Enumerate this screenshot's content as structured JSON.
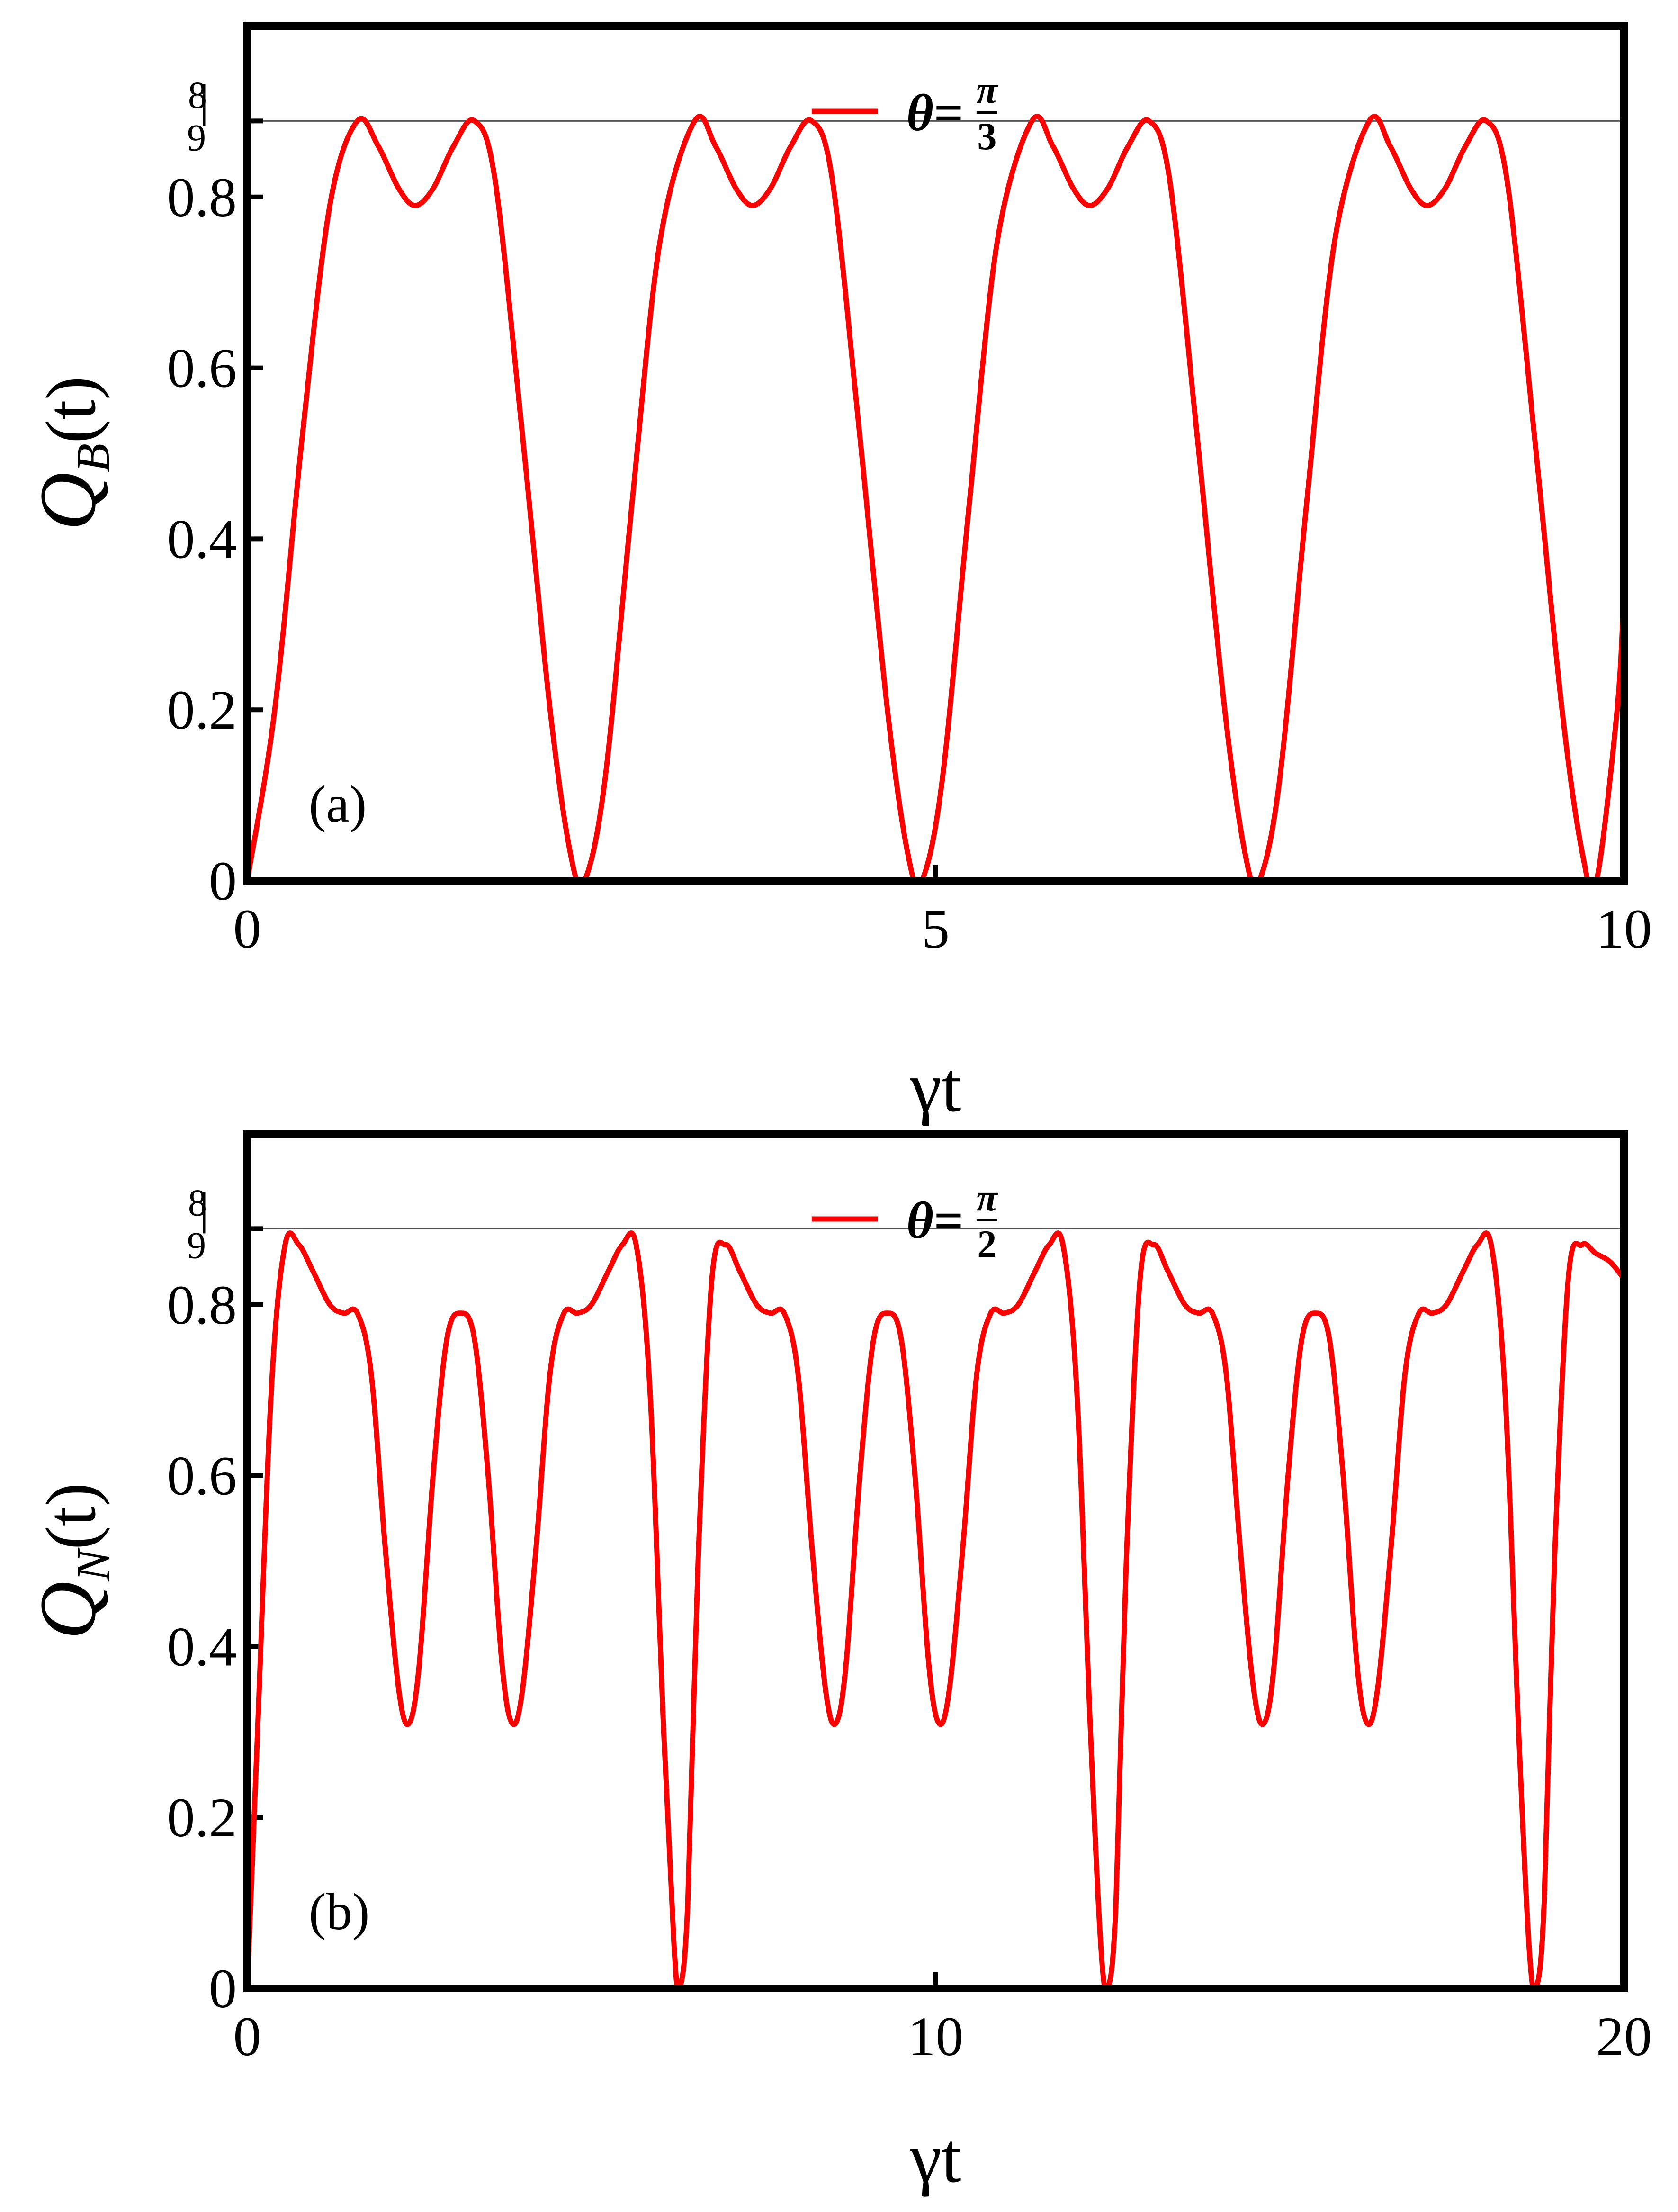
{
  "chart_data": [
    {
      "type": "line",
      "panel_label": "(a)",
      "xlabel": "γt",
      "ylabel": "Q_B(t)",
      "ylabel_main": "Q",
      "ylabel_sub": "B",
      "ylabel_tail": "(t)",
      "xlim": [
        0,
        10
      ],
      "ylim": [
        0,
        1
      ],
      "xticks": [
        0,
        5,
        10
      ],
      "xtick_labels": [
        "0",
        "5",
        "10"
      ],
      "yticks": [
        0,
        0.2,
        0.4,
        0.6,
        0.8
      ],
      "ytick_labels": [
        "0",
        "0.2",
        "0.4",
        "0.6",
        "0.8"
      ],
      "reference_line": {
        "value": 0.8889,
        "label_num": "8",
        "label_den": "9"
      },
      "legend": {
        "position": "top-center",
        "symbol": "θ=",
        "num": "π",
        "den": "3"
      },
      "series": [
        {
          "color": "#ff0000",
          "points": [
            [
              0,
              0
            ],
            [
              0.2,
              0.2
            ],
            [
              0.4,
              0.52
            ],
            [
              0.6,
              0.79
            ],
            [
              0.8,
              0.889
            ],
            [
              0.95,
              0.86
            ],
            [
              1.1,
              0.81
            ],
            [
              1.22,
              0.79
            ],
            [
              1.35,
              0.81
            ],
            [
              1.5,
              0.86
            ],
            [
              1.65,
              0.889
            ],
            [
              1.8,
              0.82
            ],
            [
              2.0,
              0.52
            ],
            [
              2.2,
              0.2
            ],
            [
              2.35,
              0.03
            ],
            [
              2.45,
              0
            ],
            [
              2.6,
              0.12
            ],
            [
              2.8,
              0.45
            ],
            [
              3.0,
              0.75
            ],
            [
              3.25,
              0.889
            ],
            [
              3.4,
              0.86
            ],
            [
              3.55,
              0.81
            ],
            [
              3.67,
              0.79
            ],
            [
              3.8,
              0.81
            ],
            [
              3.95,
              0.86
            ],
            [
              4.1,
              0.889
            ],
            [
              4.25,
              0.82
            ],
            [
              4.45,
              0.52
            ],
            [
              4.65,
              0.2
            ],
            [
              4.8,
              0.03
            ],
            [
              4.9,
              0
            ],
            [
              5.05,
              0.12
            ],
            [
              5.25,
              0.45
            ],
            [
              5.45,
              0.75
            ],
            [
              5.7,
              0.889
            ],
            [
              5.85,
              0.86
            ],
            [
              6.0,
              0.81
            ],
            [
              6.12,
              0.79
            ],
            [
              6.25,
              0.81
            ],
            [
              6.4,
              0.86
            ],
            [
              6.55,
              0.889
            ],
            [
              6.7,
              0.82
            ],
            [
              6.9,
              0.52
            ],
            [
              7.1,
              0.2
            ],
            [
              7.25,
              0.03
            ],
            [
              7.35,
              0
            ],
            [
              7.5,
              0.12
            ],
            [
              7.7,
              0.45
            ],
            [
              7.9,
              0.75
            ],
            [
              8.15,
              0.889
            ],
            [
              8.3,
              0.86
            ],
            [
              8.45,
              0.81
            ],
            [
              8.57,
              0.79
            ],
            [
              8.7,
              0.81
            ],
            [
              8.85,
              0.86
            ],
            [
              9.0,
              0.889
            ],
            [
              9.15,
              0.82
            ],
            [
              9.35,
              0.52
            ],
            [
              9.55,
              0.2
            ],
            [
              9.7,
              0.03
            ],
            [
              9.8,
              0
            ],
            [
              9.95,
              0.2
            ],
            [
              10,
              0.34
            ]
          ]
        }
      ]
    },
    {
      "type": "line",
      "panel_label": "(b)",
      "xlabel": "γt",
      "ylabel": "Q_N(t)",
      "ylabel_main": "Q",
      "ylabel_sub": "N",
      "ylabel_tail": "(t)",
      "xlim": [
        0,
        20
      ],
      "ylim": [
        0,
        1
      ],
      "xticks": [
        0,
        10,
        20
      ],
      "xtick_labels": [
        "0",
        "10",
        "20"
      ],
      "yticks": [
        0,
        0.2,
        0.4,
        0.6,
        0.8
      ],
      "ytick_labels": [
        "0",
        "0.2",
        "0.4",
        "0.6",
        "0.8"
      ],
      "reference_line": {
        "value": 0.8889,
        "label_num": "8",
        "label_den": "9"
      },
      "legend": {
        "position": "top-center",
        "symbol": "θ=",
        "num": "π",
        "den": "2"
      },
      "series": [
        {
          "color": "#ff0000",
          "points": [
            [
              0,
              0
            ],
            [
              0.15,
              0.3
            ],
            [
              0.35,
              0.7
            ],
            [
              0.55,
              0.87
            ],
            [
              0.75,
              0.87
            ],
            [
              0.95,
              0.84
            ],
            [
              1.2,
              0.8
            ],
            [
              1.4,
              0.79
            ],
            [
              1.6,
              0.79
            ],
            [
              1.8,
              0.72
            ],
            [
              2.0,
              0.52
            ],
            [
              2.2,
              0.35
            ],
            [
              2.35,
              0.31
            ],
            [
              2.5,
              0.38
            ],
            [
              2.7,
              0.6
            ],
            [
              2.9,
              0.76
            ],
            [
              3.1,
              0.79
            ],
            [
              3.3,
              0.76
            ],
            [
              3.5,
              0.6
            ],
            [
              3.7,
              0.38
            ],
            [
              3.85,
              0.31
            ],
            [
              4.0,
              0.35
            ],
            [
              4.2,
              0.52
            ],
            [
              4.4,
              0.72
            ],
            [
              4.6,
              0.79
            ],
            [
              4.8,
              0.79
            ],
            [
              5.0,
              0.8
            ],
            [
              5.25,
              0.84
            ],
            [
              5.45,
              0.87
            ],
            [
              5.65,
              0.87
            ],
            [
              5.85,
              0.7
            ],
            [
              6.05,
              0.3
            ],
            [
              6.2,
              0.05
            ],
            [
              6.28,
              0
            ],
            [
              6.4,
              0.1
            ],
            [
              6.55,
              0.5
            ],
            [
              6.75,
              0.83
            ],
            [
              6.95,
              0.87
            ],
            [
              7.15,
              0.84
            ],
            [
              7.4,
              0.8
            ],
            [
              7.6,
              0.79
            ],
            [
              7.8,
              0.79
            ],
            [
              8.0,
              0.72
            ],
            [
              8.2,
              0.52
            ],
            [
              8.4,
              0.35
            ],
            [
              8.55,
              0.31
            ],
            [
              8.7,
              0.38
            ],
            [
              8.9,
              0.6
            ],
            [
              9.1,
              0.76
            ],
            [
              9.3,
              0.79
            ],
            [
              9.5,
              0.76
            ],
            [
              9.7,
              0.6
            ],
            [
              9.9,
              0.38
            ],
            [
              10.05,
              0.31
            ],
            [
              10.2,
              0.35
            ],
            [
              10.4,
              0.52
            ],
            [
              10.6,
              0.72
            ],
            [
              10.8,
              0.79
            ],
            [
              11.0,
              0.79
            ],
            [
              11.2,
              0.8
            ],
            [
              11.45,
              0.84
            ],
            [
              11.65,
              0.87
            ],
            [
              11.85,
              0.87
            ],
            [
              12.05,
              0.7
            ],
            [
              12.25,
              0.3
            ],
            [
              12.4,
              0.05
            ],
            [
              12.5,
              0
            ],
            [
              12.62,
              0.1
            ],
            [
              12.77,
              0.5
            ],
            [
              12.97,
              0.83
            ],
            [
              13.17,
              0.87
            ],
            [
              13.37,
              0.84
            ],
            [
              13.62,
              0.8
            ],
            [
              13.82,
              0.79
            ],
            [
              14.02,
              0.79
            ],
            [
              14.22,
              0.72
            ],
            [
              14.42,
              0.52
            ],
            [
              14.62,
              0.35
            ],
            [
              14.77,
              0.31
            ],
            [
              14.92,
              0.38
            ],
            [
              15.12,
              0.6
            ],
            [
              15.32,
              0.76
            ],
            [
              15.52,
              0.79
            ],
            [
              15.72,
              0.76
            ],
            [
              15.92,
              0.6
            ],
            [
              16.12,
              0.38
            ],
            [
              16.27,
              0.31
            ],
            [
              16.42,
              0.35
            ],
            [
              16.62,
              0.52
            ],
            [
              16.82,
              0.72
            ],
            [
              17.02,
              0.79
            ],
            [
              17.22,
              0.79
            ],
            [
              17.42,
              0.8
            ],
            [
              17.67,
              0.84
            ],
            [
              17.87,
              0.87
            ],
            [
              18.07,
              0.87
            ],
            [
              18.27,
              0.7
            ],
            [
              18.47,
              0.3
            ],
            [
              18.62,
              0.05
            ],
            [
              18.72,
              0
            ],
            [
              18.84,
              0.1
            ],
            [
              18.99,
              0.5
            ],
            [
              19.19,
              0.83
            ],
            [
              19.39,
              0.87
            ],
            [
              19.59,
              0.86
            ],
            [
              19.8,
              0.85
            ],
            [
              20,
              0.83
            ]
          ]
        }
      ]
    }
  ]
}
